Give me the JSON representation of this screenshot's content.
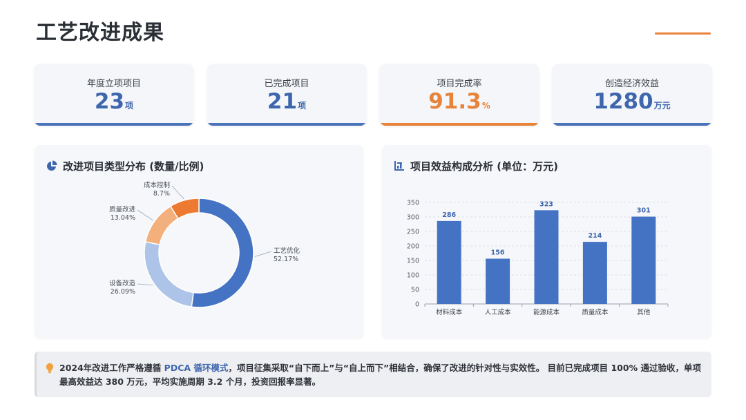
{
  "page": {
    "title": "工艺改进成果"
  },
  "kpis": [
    {
      "label": "年度立项项目",
      "value": "23",
      "unit": "项",
      "accent": "#4a73ba"
    },
    {
      "label": "已完成项目",
      "value": "21",
      "unit": "项",
      "accent": "#4a73ba"
    },
    {
      "label": "项目完成率",
      "value": "91.3",
      "unit": "%",
      "accent": "#e8833a"
    },
    {
      "label": "创造经济效益",
      "value": "1280",
      "unit": "万元",
      "accent": "#4a73ba"
    }
  ],
  "panels": {
    "left_title": "改进项目类型分布 (数量/比例)",
    "left_icon": "pie-chart-icon",
    "right_title": "项目效益构成分析 (单位：万元)",
    "right_icon": "bar-chart-icon"
  },
  "chart_data": [
    {
      "type": "pie",
      "variant": "donut",
      "slices": [
        {
          "label": "工艺优化",
          "value": 52.17,
          "display": "52.17%",
          "color": "#4573c4"
        },
        {
          "label": "设备改造",
          "value": 26.09,
          "display": "26.09%",
          "color": "#adc4e8"
        },
        {
          "label": "质量改进",
          "value": 13.04,
          "display": "13.04%",
          "color": "#f3b07c"
        },
        {
          "label": "成本控制",
          "value": 8.7,
          "display": "8.7%",
          "color": "#ec7a30"
        }
      ]
    },
    {
      "type": "bar",
      "categories": [
        "材料成本",
        "人工成本",
        "能源成本",
        "质量成本",
        "其他"
      ],
      "values": [
        286,
        156,
        323,
        214,
        301
      ],
      "ylim": [
        0,
        350
      ],
      "yticks": [
        0,
        50,
        100,
        150,
        200,
        250,
        300,
        350
      ],
      "grid": true,
      "bar_color": "#4573c4",
      "label_color": "#3d66ad"
    }
  ],
  "note": {
    "icon": "lightbulb-icon",
    "text_a": "2024年改进工作严格遵循 ",
    "highlight": "PDCA 循环模式",
    "text_b": "，项目征集采取“自下而上”与“自上而下”相结合，确保了改进的针对性与实效性。 目前已完成项目 100% 通过验收，单项最高效益达 380 万元，平均实施周期 3.2 个月，投资回报率显著。"
  }
}
